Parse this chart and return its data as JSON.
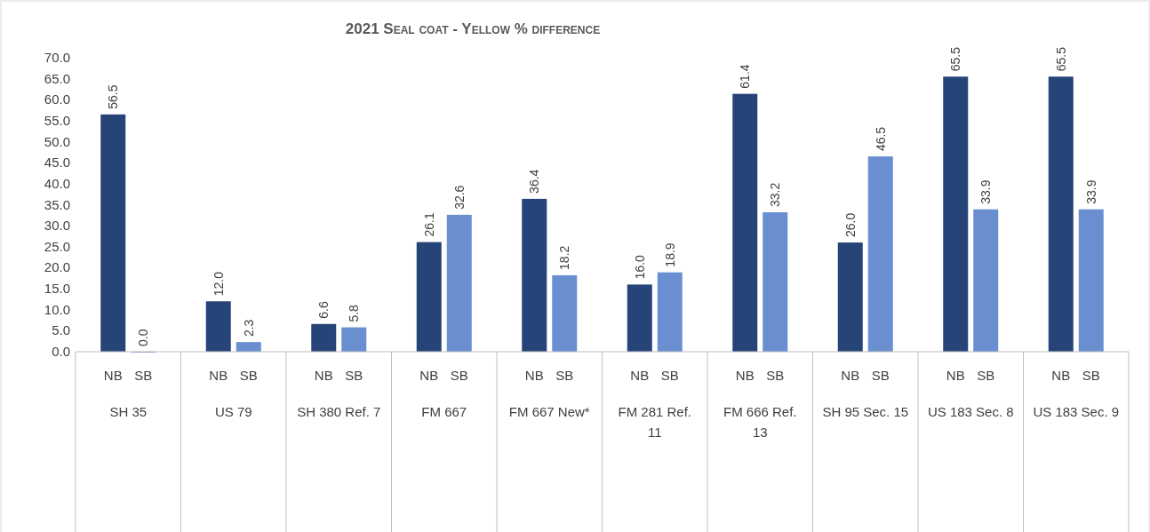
{
  "chart_data": {
    "type": "bar",
    "title": "2021 Seal coat - Yellow % difference",
    "categories": [
      "SH 35",
      "US 79",
      "SH 380  Ref. 7",
      "FM 667",
      "FM 667 New*",
      "FM 281 Ref. 11",
      "FM 666 Ref. 13",
      "SH 95 Sec. 15",
      "US 183 Sec. 8",
      "US 183 Sec. 9"
    ],
    "series": [
      {
        "name": "NB",
        "color": "#264478",
        "values": [
          56.5,
          12.0,
          6.6,
          26.1,
          36.4,
          16.0,
          61.4,
          26.0,
          65.5,
          65.5
        ],
        "value_labels": [
          "56.5",
          "12.0",
          "6.6",
          "26.1",
          "36.4",
          "16.0",
          "61.4",
          "26.0",
          "65.5",
          "65.5"
        ]
      },
      {
        "name": "SB",
        "color": "#6a8fd0",
        "values": [
          0.0,
          2.3,
          5.8,
          32.6,
          18.2,
          18.9,
          33.2,
          46.5,
          33.9,
          33.9
        ],
        "value_labels": [
          "0.0",
          "2.3",
          "5.8",
          "32.6",
          "18.2",
          "18.9",
          "33.2",
          "46.5",
          "33.9",
          "33.9"
        ]
      }
    ],
    "ylim": [
      0,
      70
    ],
    "yticks": [
      {
        "value": 0,
        "label": "0.0"
      },
      {
        "value": 5,
        "label": "5.0"
      },
      {
        "value": 10,
        "label": "10.0"
      },
      {
        "value": 15,
        "label": "15.0"
      },
      {
        "value": 20,
        "label": "20.0"
      },
      {
        "value": 25,
        "label": "25.0"
      },
      {
        "value": 30,
        "label": "30.0"
      },
      {
        "value": 35,
        "label": "35.0"
      },
      {
        "value": 40,
        "label": "40.0"
      },
      {
        "value": 45,
        "label": "45.0"
      },
      {
        "value": 50,
        "label": "50.0"
      },
      {
        "value": 55,
        "label": "55.0"
      },
      {
        "value": 60,
        "label": "60.0"
      },
      {
        "value": 65,
        "label": "65.0"
      },
      {
        "value": 70,
        "label": "70.0"
      }
    ],
    "grid": false,
    "legend": false
  }
}
